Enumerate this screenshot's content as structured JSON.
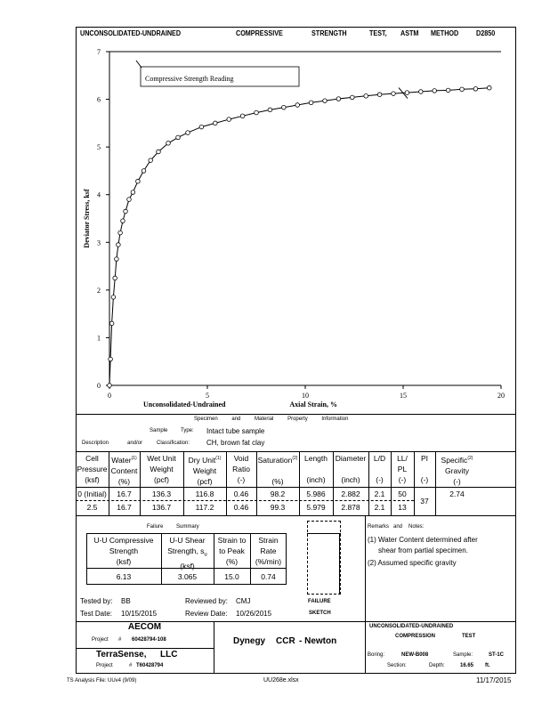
{
  "header": {
    "t1": "UNCONSOLIDATED-UNDRAINED",
    "t2": "COMPRESSIVE",
    "t3": "STRENGTH",
    "t4": "TEST,",
    "t5": "ASTM",
    "t6": "METHOD",
    "t7": "D2850"
  },
  "chart_data": {
    "type": "line",
    "title": "",
    "legend": "Compressive Strength Reading",
    "xlabel_left": "Unconsolidated-Undrained",
    "xlabel": "Axial Strain, %",
    "ylabel": "Deviator Stress, ksf",
    "xlim": [
      0,
      20
    ],
    "ylim": [
      0,
      7
    ],
    "xticks": [
      0,
      5,
      10,
      15,
      20
    ],
    "yticks": [
      0,
      1,
      2,
      3,
      4,
      5,
      6,
      7
    ],
    "x": [
      0.0,
      0.05,
      0.12,
      0.2,
      0.28,
      0.36,
      0.45,
      0.55,
      0.68,
      0.82,
      1.0,
      1.2,
      1.45,
      1.75,
      2.1,
      2.5,
      3.0,
      3.5,
      4.0,
      4.7,
      5.4,
      6.1,
      6.8,
      7.5,
      8.2,
      8.9,
      9.6,
      10.3,
      11.0,
      11.7,
      12.4,
      13.1,
      13.8,
      14.5,
      15.2,
      15.9,
      16.6,
      17.3,
      18.0,
      18.7,
      19.4
    ],
    "y": [
      0.0,
      0.55,
      1.3,
      1.85,
      2.25,
      2.65,
      2.95,
      3.2,
      3.45,
      3.65,
      3.9,
      4.05,
      4.28,
      4.5,
      4.72,
      4.9,
      5.08,
      5.2,
      5.3,
      5.42,
      5.5,
      5.58,
      5.65,
      5.72,
      5.78,
      5.83,
      5.88,
      5.93,
      5.97,
      6.01,
      6.04,
      6.07,
      6.1,
      6.12,
      6.14,
      6.16,
      6.18,
      6.19,
      6.21,
      6.22,
      6.24
    ],
    "failure_x": 15.0,
    "failure_y": 6.13
  },
  "props": {
    "heading": [
      "Specimen",
      "and",
      "Material",
      "Property",
      "Information"
    ],
    "sample_type_label": "Sample",
    "sample_type_label2": "Type:",
    "sample_type": "Intact tube sample",
    "desc_label1": "Description",
    "desc_label2": "and/or",
    "desc_label3": "Classification:",
    "classification": "CH, brown fat clay",
    "columns": [
      {
        "l1": "Cell",
        "l2": "Pressure",
        "l3": "(ksf)"
      },
      {
        "l1": "Water",
        "l2": "Content",
        "l3": "(%)",
        "sup": "(1)"
      },
      {
        "l1": "Wet Unit",
        "l2": "Weight",
        "l3": "(pcf)"
      },
      {
        "l1": "Dry Unit",
        "l2": "Weight",
        "l3": "(pcf)",
        "sup": "(1)"
      },
      {
        "l1": "Void",
        "l2": "Ratio",
        "l3": "(-)"
      },
      {
        "l1": "Saturation",
        "l2": "",
        "l3": "(%)",
        "sup": "(2)"
      },
      {
        "l1": "Length",
        "l2": "",
        "l3": "(inch)"
      },
      {
        "l1": "Diameter",
        "l2": "",
        "l3": "(inch)"
      },
      {
        "l1": "L/D",
        "l2": "",
        "l3": "(-)"
      },
      {
        "l1": "LL/",
        "l2": "PL",
        "l3": "(-)"
      },
      {
        "l1": "PI",
        "l2": "",
        "l3": "(-)"
      },
      {
        "l1": "Specific",
        "l2": "Gravity",
        "l3": "(-)",
        "sup": "(2)"
      }
    ],
    "rows": [
      [
        "0 (Initial)",
        "16.7",
        "136.3",
        "116.8",
        "0.46",
        "98.2",
        "5.986",
        "2.882",
        "2.1",
        "50"
      ],
      [
        "2.5",
        "16.7",
        "136.7",
        "117.2",
        "0.46",
        "99.3",
        "5.979",
        "2.878",
        "2.1",
        "13"
      ]
    ],
    "pi": "37",
    "gs": "2.74"
  },
  "failure": {
    "heading1": "Failure",
    "heading2": "Summary",
    "h1a": "U-U Compressive",
    "h1b": "Strength",
    "h1c": "(ksf)",
    "h2a": "U-U Shear",
    "h2b": "Strength, s",
    "h2sub": "u",
    "h2c": "(ksf)",
    "h3a": "Strain to",
    "h3b": "to Peak",
    "h3c": "(%)",
    "h4a": "Strain",
    "h4b": "Rate",
    "h4c": "(%/min)",
    "v1": "6.13",
    "v2": "3.065",
    "v3": "15.0",
    "v4": "0.74",
    "sketch1": "FAILURE",
    "sketch2": "SKETCH"
  },
  "remarks": {
    "label1": "Remarks",
    "label2": "and",
    "label3": "Notes:",
    "line1": "(1) Water Content determined after",
    "line2": "shear from partial specimen.",
    "line3": "(2) Assumed specific gravity"
  },
  "signoff": {
    "tested_label": "Tested by:",
    "tested_by": "BB",
    "reviewed_label": "Reviewed by:",
    "reviewed_by": "CMJ",
    "test_date_label": "Test Date:",
    "test_date": "10/15/2015",
    "review_date_label": "Review Date:",
    "review_date": "10/26/2015"
  },
  "titleblock": {
    "client": "AECOM",
    "project_label": "Project",
    "project_hash": "#",
    "project_no": "60428794-108",
    "lab": "TerraSense,",
    "lab2": "LLC",
    "lab_project_label": "Project",
    "lab_project_hash": "#",
    "lab_project_no": "T60428794",
    "site1": "Dynegy",
    "site2": "CCR",
    "site3": "- Newton",
    "test1": "UNCONSOLIDATED-UNDRAINED",
    "test2": "COMPRESSION",
    "test3": "TEST",
    "boring_label": "Boring:",
    "boring": "NEW-B008",
    "sample_label": "Sample:",
    "sample": "ST-1C",
    "section_label": "Section:",
    "depth_label": "Depth:",
    "depth": "16.65",
    "depth_unit": "ft."
  },
  "footer": {
    "left": "TS Analysis File:  UUv4 (9/09)",
    "center": "UU268e.xlsx",
    "right": "11/17/2015"
  }
}
